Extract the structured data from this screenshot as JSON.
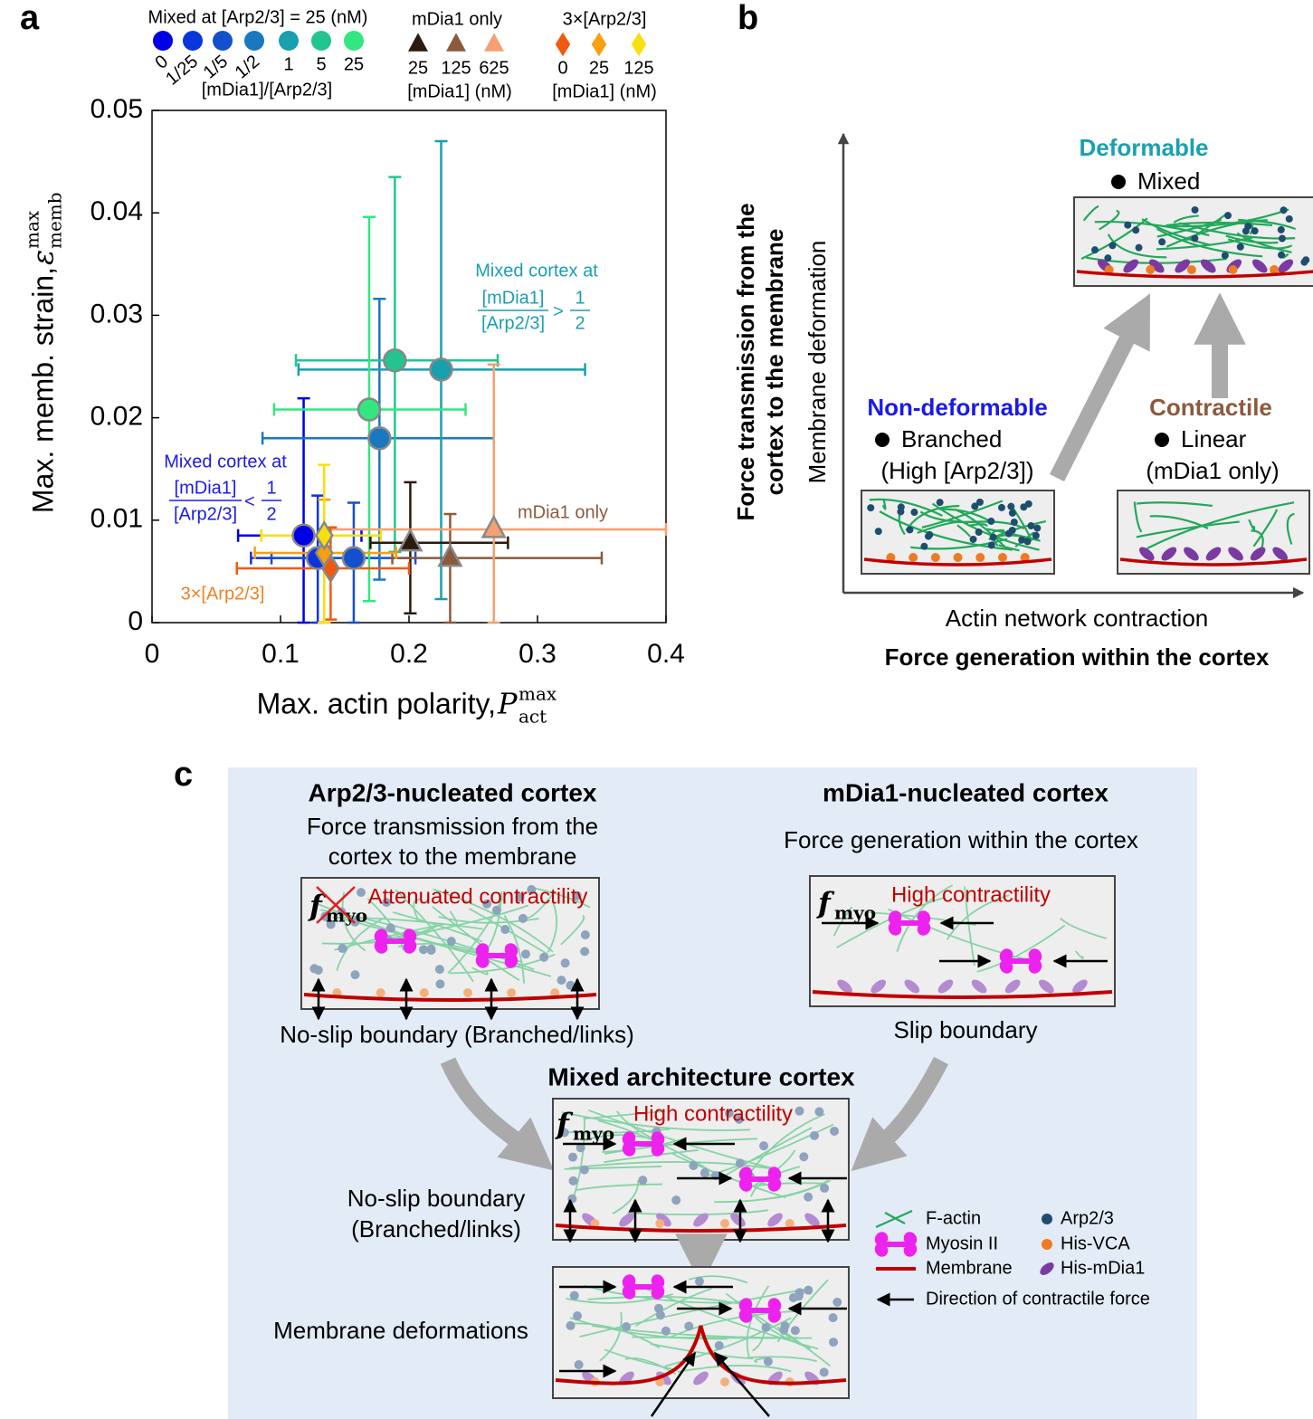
{
  "chart_data": {
    "type": "scatter",
    "xlabel": "Max. actin polarity, ",
    "xlabel_symbol": "P",
    "xlabel_sup": "max",
    "xlabel_sub": "act",
    "ylabel": "Max. memb. strain, ",
    "ylabel_symbol": "ε",
    "ylabel_sup": "max",
    "ylabel_sub": "memb",
    "xlim": [
      0,
      0.4
    ],
    "xticks": [
      0,
      0.1,
      0.2,
      0.3,
      0.4
    ],
    "ylim": [
      0,
      0.05
    ],
    "yticks": [
      0,
      0.01,
      0.02,
      0.03,
      0.04,
      0.05
    ],
    "series": [
      {
        "name": "Mixed at [Arp2/3] = 25 (nM)",
        "legend_unit": "[mDia1]/[Arp2/3]",
        "marker": "circle",
        "point_labels": [
          "0",
          "1/25",
          "1/5",
          "1/2",
          "1",
          "5",
          "25"
        ],
        "colors": [
          "#0000e6",
          "#0a35dc",
          "#1450cc",
          "#1a78bf",
          "#17a0ad",
          "#22c490",
          "#33e680"
        ],
        "x": [
          0.118,
          0.129,
          0.157,
          0.177,
          0.225,
          0.189,
          0.169
        ],
        "y": [
          0.0085,
          0.0063,
          0.0063,
          0.018,
          0.0247,
          0.0256,
          0.0208
        ],
        "x_low": [
          0.067,
          0.077,
          0.093,
          0.086,
          0.114,
          0.112,
          0.095
        ],
        "x_high": [
          0.163,
          0.177,
          0.205,
          0.266,
          0.337,
          0.269,
          0.244
        ],
        "y_low": [
          0,
          0,
          0,
          0.0042,
          0.0023,
          0.0069,
          0.0021
        ],
        "y_high": [
          0.0219,
          0.0124,
          0.0117,
          0.0316,
          0.047,
          0.0435,
          0.0396
        ]
      },
      {
        "name": "mDia1 only",
        "legend_unit": "[mDia1] (nM)",
        "marker": "triangle",
        "point_labels": [
          "25",
          "125",
          "625"
        ],
        "colors": [
          "#2a1a10",
          "#8b5a3c",
          "#f4a070"
        ],
        "x": [
          0.201,
          0.232,
          0.266
        ],
        "y": [
          0.0078,
          0.0063,
          0.0091
        ],
        "x_low": [
          0.17,
          0.187,
          0.135
        ],
        "x_high": [
          0.277,
          0.35,
          0.4
        ],
        "y_low": [
          0.0009,
          0,
          0
        ],
        "y_high": [
          0.0137,
          0.0106,
          0.0252
        ]
      },
      {
        "name": "3×[Arp2/3]",
        "legend_unit": "[mDia1] (nM)",
        "marker": "diamond",
        "point_labels": [
          "0",
          "25",
          "125"
        ],
        "colors": [
          "#f05a10",
          "#f8a010",
          "#f8e010"
        ],
        "x": [
          0.139,
          0.134,
          0.134
        ],
        "y": [
          0.0053,
          0.0068,
          0.0085
        ],
        "x_low": [
          0.066,
          0.08,
          0.085
        ],
        "x_high": [
          0.2,
          0.19,
          0.178
        ],
        "y_low": [
          0.0003,
          0,
          0
        ],
        "y_high": [
          0.0093,
          0.012,
          0.0154
        ]
      }
    ],
    "annotations": [
      {
        "text": "Mixed cortex at",
        "numerator": "[mDia1]",
        "denominator": "[Arp2/3]",
        "relation": ">",
        "ratio_numerator": "1",
        "ratio_denominator": "2"
      },
      {
        "text": "Mixed cortex at",
        "numerator": "[mDia1]",
        "denominator": "[Arp2/3]",
        "relation": "<",
        "ratio_numerator": "1",
        "ratio_denominator": "2"
      },
      {
        "text": "mDia1 only"
      },
      {
        "text": "3×[Arp2/3]"
      }
    ]
  },
  "panel_labels": [
    "a",
    "b",
    "c"
  ],
  "panel_b": {
    "y_axis_title": [
      "Force transmission from the",
      "cortex to the membrane"
    ],
    "y_axis_label": "Membrane deformation",
    "x_axis_label": "Actin network contraction",
    "x_axis_title": "Force generation within the cortex",
    "states": [
      {
        "title": "Deformable",
        "items": [
          "Mixed"
        ]
      },
      {
        "title": "Non-deformable",
        "items": [
          "Branched",
          "(High [Arp2/3])"
        ]
      },
      {
        "title": "Contractile",
        "items": [
          "Linear",
          "(mDia1 only)"
        ]
      }
    ]
  },
  "panel_c": {
    "arp": {
      "title": "Arp2/3-nucleated cortex",
      "subtitle": [
        "Force transmission from the",
        "cortex to the membrane"
      ],
      "box_label": "Attenuated contractility",
      "boundary": "No-slip boundary (Branched/links)"
    },
    "mdia": {
      "title": "mDia1-nucleated cortex",
      "subtitle": [
        "Force generation within the cortex"
      ],
      "box_label": "High contractility",
      "boundary": "Slip boundary"
    },
    "mixed": {
      "title": "Mixed architecture cortex",
      "box_label": "High contractility",
      "boundary": [
        "No-slip boundary",
        "(Branched/links)"
      ],
      "deformation": "Membrane deformations"
    },
    "force_symbol": "f",
    "force_subscript": "myo",
    "legend": [
      "F-actin",
      "Myosin II",
      "Membrane",
      "Arp2/3",
      "His-VCA",
      "His-mDia1",
      "Direction of contractile force"
    ]
  }
}
